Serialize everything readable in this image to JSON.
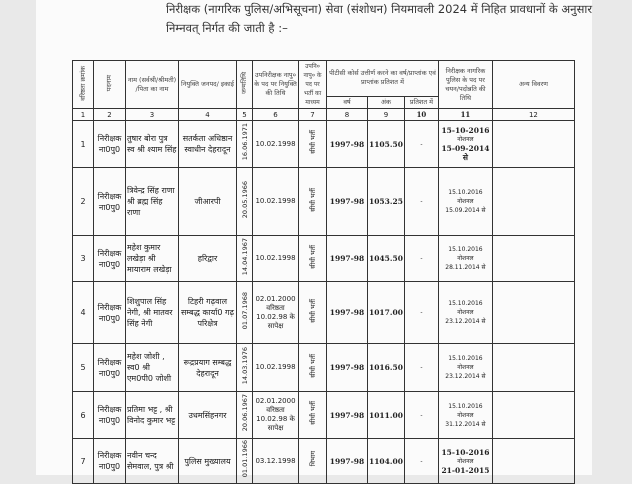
{
  "intro": {
    "line1": "निरीक्षक (नागरिक पुलिस/अभिसूचना) सेवा (संशोधन) नियमावली 2024 में निहित प्रावधानों के अनुसार",
    "line2": "निम्नवत् निर्गत की जाती है :–"
  },
  "table": {
    "headers": [
      "वरिष्ठता क्रमांक",
      "पदनाम",
      "नाम (सर्वश्री/श्रीमती) /पिता का नाम",
      "नियुक्ति जनपद/ इकाई",
      "जन्मतिथि",
      "उपनिरीक्षक नापु० के पद पर नियुक्ति की तिथि",
      "उपनि० नापु० के पद पर भर्ती का माध्यम",
      "पीटीसी कोर्स उत्तीर्ण करने का वर्ष/प्राप्तांक एवं प्राप्तांक प्रतिशत में",
      "निरीक्षक नागरिक पुलिस के पद पर चयन/पदोन्नति की तिथि",
      "अन्य विवरण"
    ],
    "subheaders": [
      "वर्ष",
      "अंक",
      "प्रतिशत में"
    ],
    "numbers": [
      "1",
      "2",
      "3",
      "4",
      "5",
      "6",
      "7",
      "8",
      "9",
      "10",
      "11",
      "12"
    ],
    "rows": [
      {
        "sn": "1",
        "post": "निरीक्षक ना0पु0",
        "name": "तुषार बोरा पुत्र स्व श्री श्याम सिंह",
        "unit": "सतर्कता अधिष्ठान स्वाधीन देहरादून",
        "dob": "16.06.1971",
        "appt": "10.02.1998",
        "mode": "सीधी भर्ती",
        "year": "1997-98",
        "marks": "1105.50",
        "pct": "-",
        "promo1": "15-10-2016",
        "promo2": "नोशनल",
        "promo3": "15-09-2014 से",
        "other": ""
      },
      {
        "sn": "2",
        "post": "निरीक्षक ना0पु0",
        "name": "त्रिवेन्द्र सिंह राणा श्री ब्रह्म सिंह राणा",
        "unit": "जीआरपी",
        "dob": "20.05.1966",
        "appt": "10.02.1998",
        "mode": "सीधी भर्ती",
        "year": "1997-98",
        "marks": "1053.25",
        "pct": "-",
        "promo1": "15.10.2016",
        "promo2": "नोशनल",
        "promo3": "15.09.2014 से",
        "other": ""
      },
      {
        "sn": "3",
        "post": "निरीक्षक ना0पु0",
        "name": "महेश कुमार लखेड़ा श्री मायाराम लखेड़ा",
        "unit": "हरिद्वार",
        "dob": "14.04.1967",
        "appt": "10.02.1998",
        "mode": "सीधी भर्ती",
        "year": "1997-98",
        "marks": "1045.50",
        "pct": "-",
        "promo1": "15.10.2016",
        "promo2": "नोशनल",
        "promo3": "28.11.2014 से",
        "other": ""
      },
      {
        "sn": "4",
        "post": "निरीक्षक ना0पु0",
        "name": "शिशुपाल सिंह नेगी, श्री मातवर सिंह नेगी",
        "unit": "टिहरी गढ़वाल सम्बद्ध कार्या0 गढ़ परिक्षेत्र",
        "dob": "01.07.1968",
        "appt": "02.01.2000 वरिष्ठता 10.02.98 के सापेक्ष",
        "mode": "सीधी भर्ती",
        "year": "1997-98",
        "marks": "1017.00",
        "pct": "-",
        "promo1": "15.10.2016",
        "promo2": "नोशनल",
        "promo3": "23.12.2014 से",
        "other": ""
      },
      {
        "sn": "5",
        "post": "निरीक्षक ना0पु0",
        "name": "महेश जोशी , स्व0 श्री एम0पी0 जोशी",
        "unit": "रूद्रप्रयाग सम्बद्ध देहरादून",
        "dob": "14.03.1976",
        "appt": "10.02.1998",
        "mode": "सीधी भर्ती",
        "year": "1997-98",
        "marks": "1016.50",
        "pct": "-",
        "promo1": "15.10.2016",
        "promo2": "नोशनल",
        "promo3": "23.12.2014 से",
        "other": ""
      },
      {
        "sn": "6",
        "post": "निरीक्षक ना0पु0",
        "name": "प्रतिमा भट्ट , श्री विनोद कुमार भट्ट",
        "unit": "उधमसिंहनगर",
        "dob": "20.06.1967",
        "appt": "02.01.2000 वरिष्ठता 10.02.98 के सापेक्ष",
        "mode": "सीधी भर्ती",
        "year": "1997-98",
        "marks": "1011.00",
        "pct": "-",
        "promo1": "15.10.2016",
        "promo2": "नोशनल",
        "promo3": "31.12.2014 से",
        "other": ""
      },
      {
        "sn": "7",
        "post": "निरीक्षक ना0पु0",
        "name": "नवीन चन्द सेमवाल, पुत्र श्री",
        "unit": "पुलिस मुख्यालय",
        "dob": "01.01.1966",
        "appt": "03.12.1998",
        "mode": "विभाग",
        "year": "1997-98",
        "marks": "1104.00",
        "pct": "-",
        "promo1": "15-10-2016",
        "promo2": "नोशनल",
        "promo3": "21-01-2015",
        "other": ""
      }
    ]
  }
}
